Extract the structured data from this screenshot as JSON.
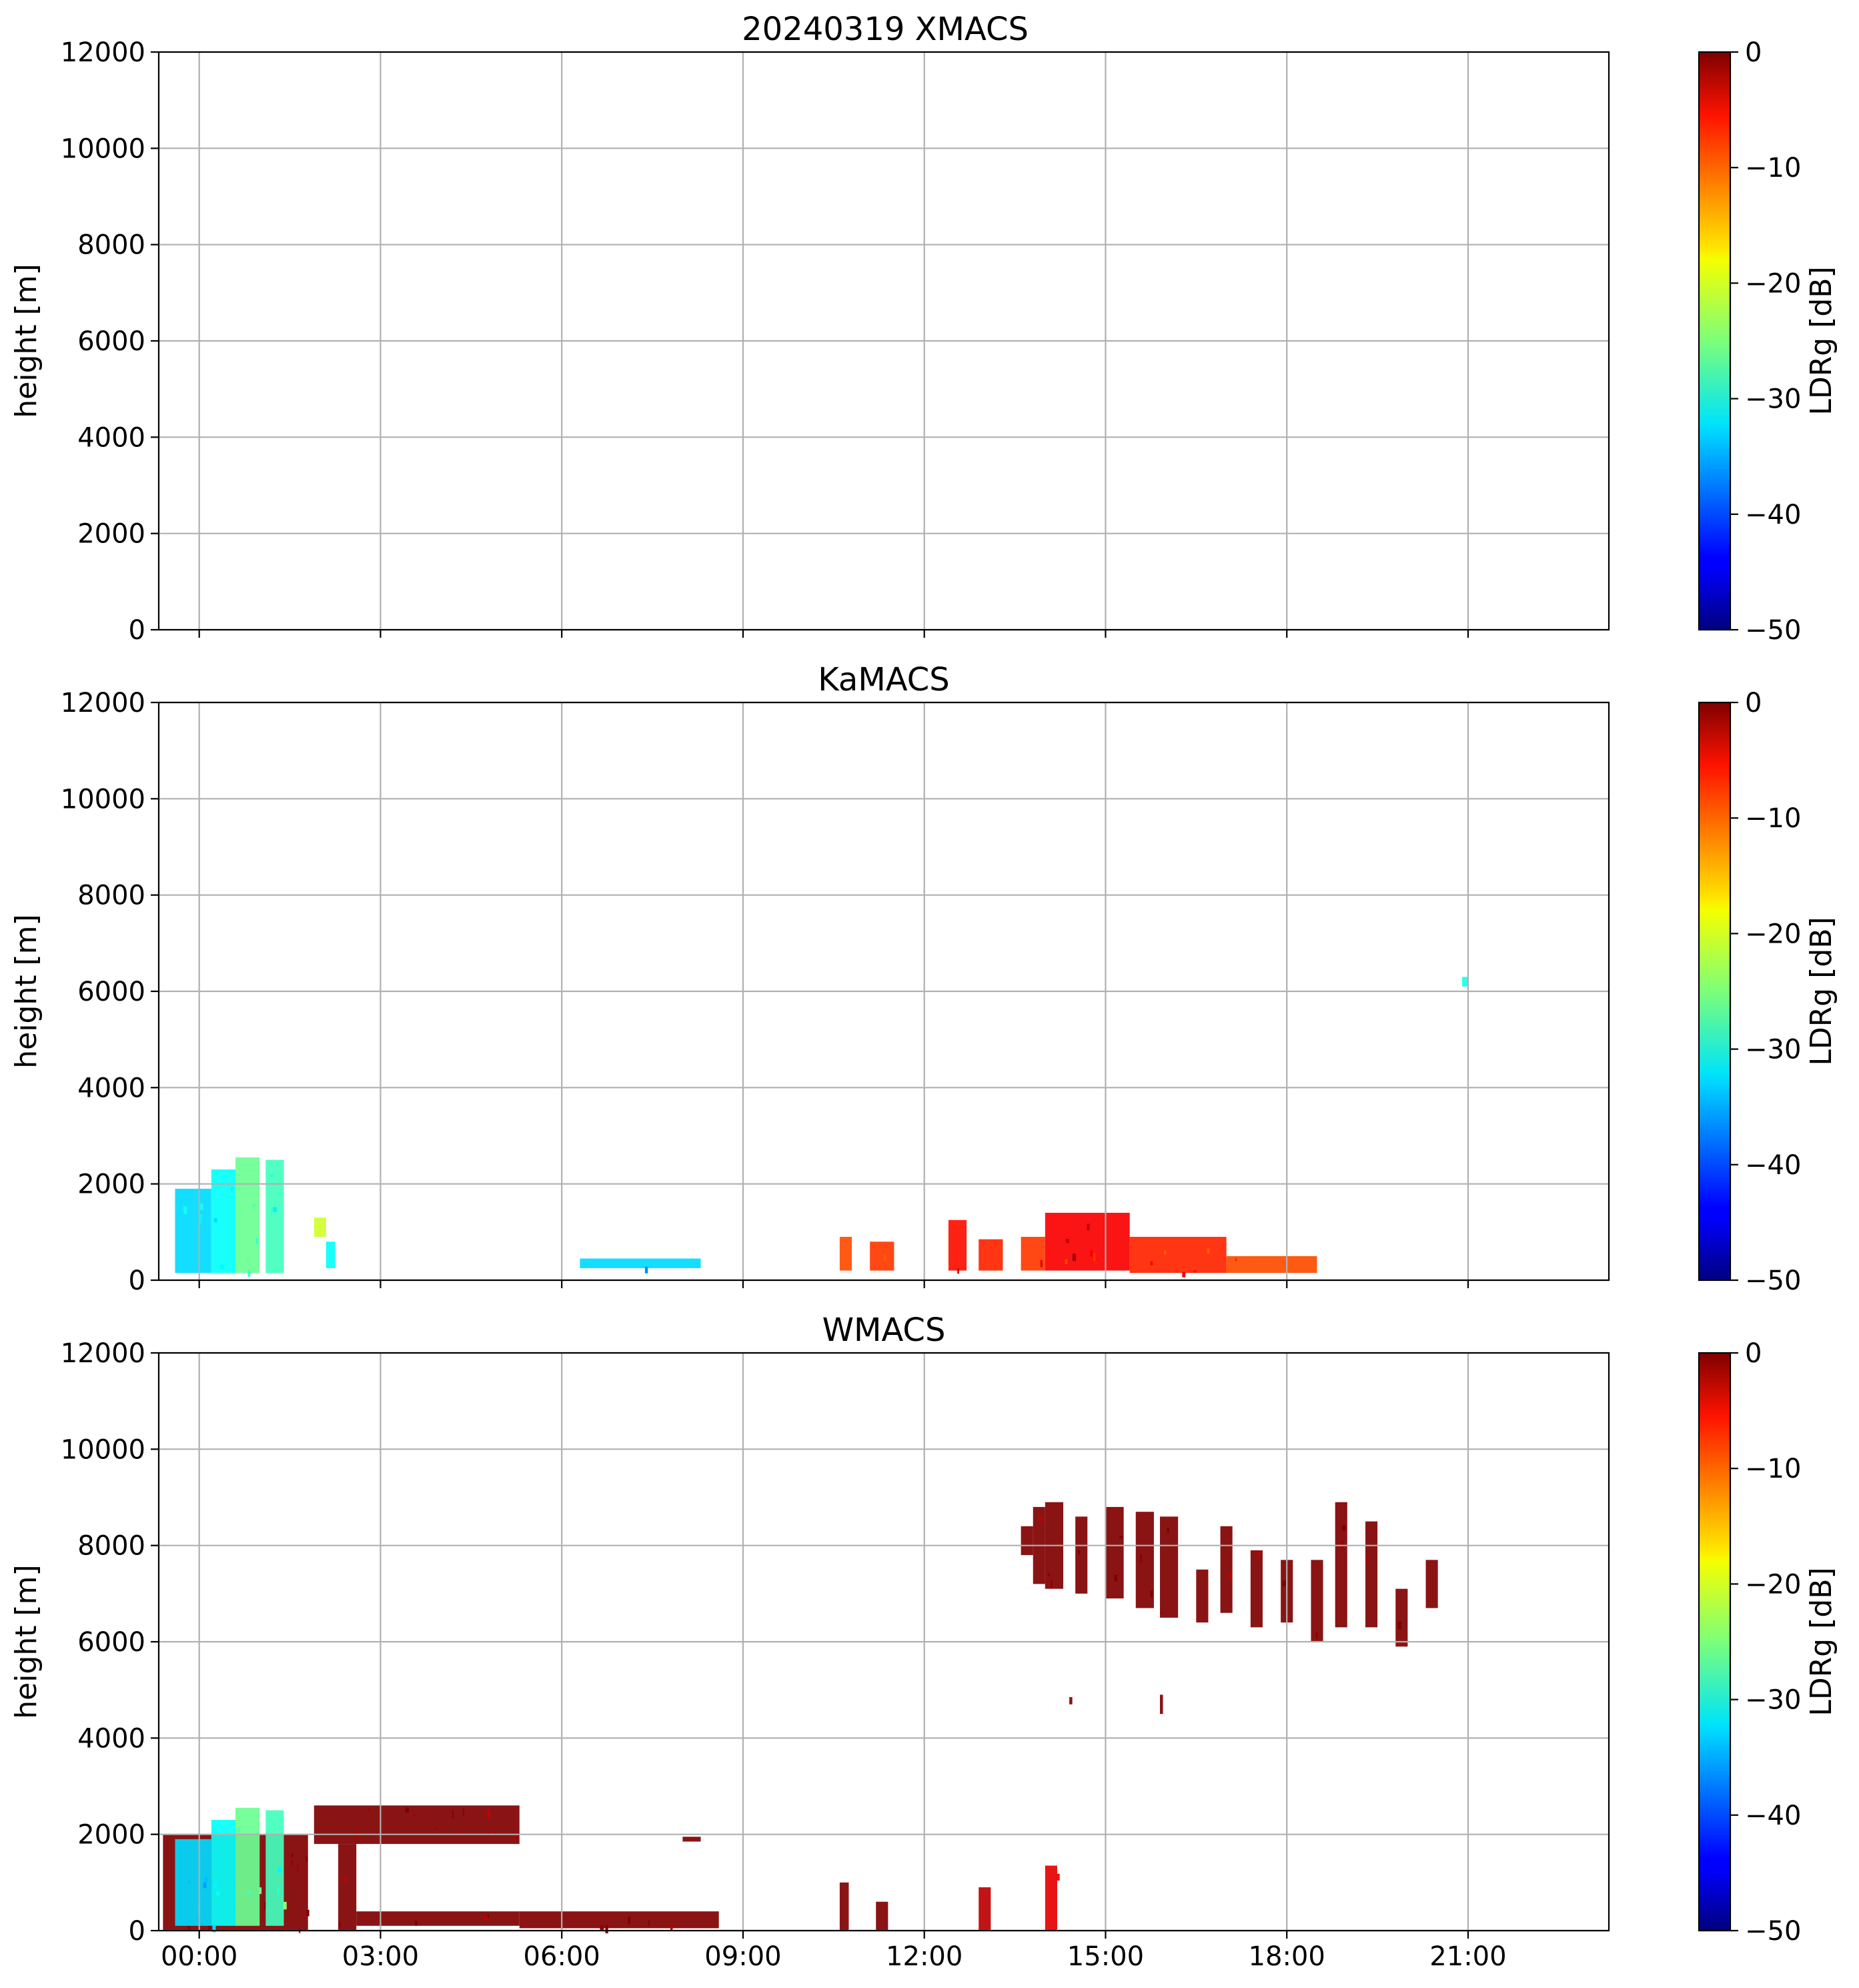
{
  "figure": {
    "suptitle": "20240319 XMACS",
    "colormap": "jet",
    "colorbar": {
      "label": "LDRg [dB]",
      "range": [
        -50,
        0
      ],
      "ticks": [
        "0",
        "−10",
        "−20",
        "−30",
        "−40",
        "−50"
      ],
      "tick_values": [
        0,
        -10,
        -20,
        -30,
        -40,
        -50
      ]
    },
    "xaxis": {
      "range_hours": [
        -0.67,
        23.33
      ],
      "tick_hours": [
        0,
        3,
        6,
        9,
        12,
        15,
        18,
        21
      ],
      "tick_labels": [
        "00:00",
        "03:00",
        "06:00",
        "09:00",
        "12:00",
        "15:00",
        "18:00",
        "21:00"
      ]
    },
    "yaxis": {
      "label": "height [m]",
      "range": [
        0,
        12000
      ],
      "tick_values": [
        0,
        2000,
        4000,
        6000,
        8000,
        10000,
        12000
      ],
      "tick_labels": [
        "0",
        "2000",
        "4000",
        "6000",
        "8000",
        "10000",
        "12000"
      ]
    }
  },
  "chart_data": [
    {
      "type": "heatmap",
      "title": "",
      "ylabel": "height [m]",
      "xlabel": "",
      "ylim": [
        0,
        12000
      ],
      "grid": true,
      "echoes": []
    },
    {
      "type": "heatmap",
      "title": "KaMACS",
      "ylabel": "height [m]",
      "xlabel": "",
      "ylim": [
        0,
        12000
      ],
      "grid": true,
      "echoes": [
        {
          "t0": -0.4,
          "t1": 0.2,
          "h0": 150,
          "h1": 1900,
          "ldr": -33
        },
        {
          "t0": 0.2,
          "t1": 0.6,
          "h0": 150,
          "h1": 2300,
          "ldr": -31
        },
        {
          "t0": 0.6,
          "t1": 1.0,
          "h0": 150,
          "h1": 2550,
          "ldr": -26
        },
        {
          "t0": 1.1,
          "t1": 1.4,
          "h0": 150,
          "h1": 2500,
          "ldr": -28
        },
        {
          "t0": 1.9,
          "t1": 2.1,
          "h0": 900,
          "h1": 1300,
          "ldr": -21
        },
        {
          "t0": 2.1,
          "t1": 2.25,
          "h0": 250,
          "h1": 800,
          "ldr": -31
        },
        {
          "t0": 6.3,
          "t1": 8.3,
          "h0": 250,
          "h1": 450,
          "ldr": -33
        },
        {
          "t0": 10.6,
          "t1": 10.8,
          "h0": 200,
          "h1": 900,
          "ldr": -10
        },
        {
          "t0": 11.1,
          "t1": 11.5,
          "h0": 200,
          "h1": 800,
          "ldr": -9
        },
        {
          "t0": 12.4,
          "t1": 12.7,
          "h0": 200,
          "h1": 1250,
          "ldr": -7
        },
        {
          "t0": 12.9,
          "t1": 13.3,
          "h0": 200,
          "h1": 850,
          "ldr": -8
        },
        {
          "t0": 13.6,
          "t1": 14.0,
          "h0": 200,
          "h1": 900,
          "ldr": -9
        },
        {
          "t0": 14.0,
          "t1": 15.4,
          "h0": 200,
          "h1": 1400,
          "ldr": -6
        },
        {
          "t0": 15.4,
          "t1": 17.0,
          "h0": 150,
          "h1": 900,
          "ldr": -8
        },
        {
          "t0": 17.0,
          "t1": 18.5,
          "h0": 150,
          "h1": 500,
          "ldr": -10
        },
        {
          "t0": 20.9,
          "t1": 21.0,
          "h0": 6100,
          "h1": 6300,
          "ldr": -30
        }
      ]
    },
    {
      "type": "heatmap",
      "title": "WMACS",
      "ylabel": "height [m]",
      "xlabel": "",
      "ylim": [
        0,
        12000
      ],
      "grid": true,
      "echoes": [
        {
          "t0": -0.6,
          "t1": 1.8,
          "h0": 0,
          "h1": 2000,
          "ldr": 0
        },
        {
          "t0": -0.4,
          "t1": 0.2,
          "h0": 100,
          "h1": 1900,
          "ldr": -33
        },
        {
          "t0": 0.2,
          "t1": 0.6,
          "h0": 100,
          "h1": 2300,
          "ldr": -31
        },
        {
          "t0": 0.6,
          "t1": 1.0,
          "h0": 100,
          "h1": 2550,
          "ldr": -26
        },
        {
          "t0": 1.1,
          "t1": 1.4,
          "h0": 100,
          "h1": 2500,
          "ldr": -28
        },
        {
          "t0": 1.9,
          "t1": 5.3,
          "h0": 1800,
          "h1": 2600,
          "ldr": 0
        },
        {
          "t0": 2.3,
          "t1": 2.6,
          "h0": 0,
          "h1": 1800,
          "ldr": 0
        },
        {
          "t0": 2.6,
          "t1": 5.3,
          "h0": 100,
          "h1": 400,
          "ldr": 0
        },
        {
          "t0": 5.3,
          "t1": 8.6,
          "h0": 50,
          "h1": 400,
          "ldr": 0
        },
        {
          "t0": 8.0,
          "t1": 8.3,
          "h0": 1850,
          "h1": 1950,
          "ldr": 0
        },
        {
          "t0": 10.6,
          "t1": 10.75,
          "h0": 0,
          "h1": 1000,
          "ldr": 0
        },
        {
          "t0": 11.2,
          "t1": 11.4,
          "h0": 0,
          "h1": 600,
          "ldr": 0
        },
        {
          "t0": 12.9,
          "t1": 13.1,
          "h0": 0,
          "h1": 900,
          "ldr": -3
        },
        {
          "t0": 14.0,
          "t1": 14.2,
          "h0": 0,
          "h1": 1350,
          "ldr": -5
        },
        {
          "t0": 13.6,
          "t1": 13.8,
          "h0": 7800,
          "h1": 8400,
          "ldr": 0
        },
        {
          "t0": 13.8,
          "t1": 14.0,
          "h0": 7200,
          "h1": 8800,
          "ldr": 0
        },
        {
          "t0": 14.0,
          "t1": 14.3,
          "h0": 7100,
          "h1": 8900,
          "ldr": 0
        },
        {
          "t0": 14.5,
          "t1": 14.7,
          "h0": 7000,
          "h1": 8600,
          "ldr": 0
        },
        {
          "t0": 15.0,
          "t1": 15.3,
          "h0": 6900,
          "h1": 8800,
          "ldr": 0
        },
        {
          "t0": 15.5,
          "t1": 15.8,
          "h0": 6700,
          "h1": 8700,
          "ldr": 0
        },
        {
          "t0": 15.9,
          "t1": 16.2,
          "h0": 6500,
          "h1": 8600,
          "ldr": 0
        },
        {
          "t0": 16.5,
          "t1": 16.7,
          "h0": 6400,
          "h1": 7500,
          "ldr": 0
        },
        {
          "t0": 16.9,
          "t1": 17.1,
          "h0": 6600,
          "h1": 8400,
          "ldr": 0
        },
        {
          "t0": 17.4,
          "t1": 17.6,
          "h0": 6300,
          "h1": 7900,
          "ldr": 0
        },
        {
          "t0": 17.9,
          "t1": 18.1,
          "h0": 6400,
          "h1": 7700,
          "ldr": 0
        },
        {
          "t0": 18.4,
          "t1": 18.6,
          "h0": 6000,
          "h1": 7700,
          "ldr": 0
        },
        {
          "t0": 18.8,
          "t1": 19.0,
          "h0": 6300,
          "h1": 8900,
          "ldr": 0
        },
        {
          "t0": 19.3,
          "t1": 19.5,
          "h0": 6300,
          "h1": 8500,
          "ldr": 0
        },
        {
          "t0": 19.8,
          "t1": 20.0,
          "h0": 5900,
          "h1": 7100,
          "ldr": 0
        },
        {
          "t0": 20.3,
          "t1": 20.5,
          "h0": 6700,
          "h1": 7700,
          "ldr": 0
        },
        {
          "t0": 14.4,
          "t1": 14.45,
          "h0": 4700,
          "h1": 4850,
          "ldr": 0
        },
        {
          "t0": 15.9,
          "t1": 15.95,
          "h0": 4500,
          "h1": 4900,
          "ldr": 0
        }
      ]
    }
  ]
}
